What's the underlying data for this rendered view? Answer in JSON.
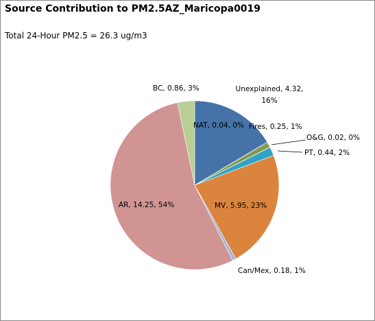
{
  "chart_data": {
    "type": "pie",
    "title": "Source Contribution to PM2.5AZ_Maricopa0019",
    "subtitle": "Total 24-Hour PM2.5 = 26.3 ug/m3",
    "categories": [
      "Unexplained",
      "NAT",
      "Fires",
      "O&G",
      "PT",
      "MV",
      "Can/Mex",
      "AR",
      "BC"
    ],
    "values": [
      4.32,
      0.04,
      0.25,
      0.02,
      0.44,
      5.95,
      0.18,
      14.25,
      0.86
    ],
    "percents": [
      "16%",
      "0%",
      "1%",
      "0%",
      "2%",
      "23%",
      "1%",
      "54%",
      "3%"
    ],
    "colors": [
      "#4572A7",
      "#4572A7",
      "#7F9A48",
      "#5B7A36",
      "#31A2C5",
      "#DB843D",
      "#A5B6E0",
      "#D09493",
      "#B9CF96"
    ],
    "labels": [
      [
        "Unexplained, 4.32,",
        "16%"
      ],
      [
        "NAT, 0.04, 0%"
      ],
      [
        "Fires, 0.25, 1%"
      ],
      [
        "O&G, 0.02, 0%"
      ],
      [
        "PT, 0.44, 2%"
      ],
      [
        "MV, 5.95, 23%"
      ],
      [
        "Can/Mex, 0.18, 1%"
      ],
      [
        "AR, 14.25, 54%"
      ],
      [
        "BC, 0.86, 3%"
      ]
    ]
  }
}
